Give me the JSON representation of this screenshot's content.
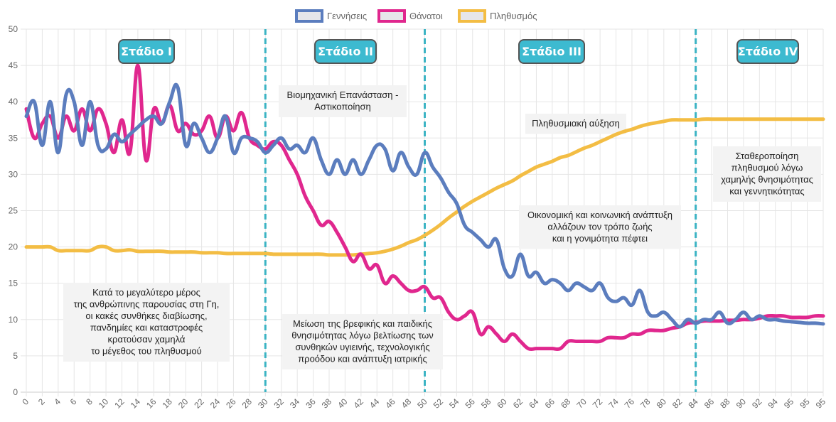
{
  "chart_data": {
    "type": "line",
    "title": "",
    "xlabel": "",
    "ylabel": "",
    "ylim": [
      0,
      50
    ],
    "y_ticks": [
      0,
      5,
      10,
      15,
      20,
      25,
      30,
      35,
      40,
      45,
      50
    ],
    "grid": true,
    "legend_position": "top",
    "x": [
      "0",
      "1",
      "2",
      "3",
      "4",
      "5",
      "6",
      "7",
      "8",
      "9",
      "10",
      "11",
      "12",
      "13",
      "14",
      "15",
      "16",
      "17",
      "18",
      "19",
      "20",
      "21",
      "22",
      "23",
      "24",
      "25",
      "26",
      "27",
      "28",
      "29",
      "30",
      "31",
      "32",
      "33",
      "34",
      "35",
      "36",
      "37",
      "38",
      "39",
      "40",
      "41",
      "42",
      "43",
      "44",
      "45",
      "46",
      "47",
      "48",
      "49",
      "50",
      "51",
      "52",
      "53",
      "54",
      "55",
      "56",
      "57",
      "58",
      "59",
      "60",
      "61",
      "62",
      "63",
      "64",
      "65",
      "66",
      "67",
      "68",
      "69",
      "70",
      "71",
      "72",
      "73",
      "74",
      "75",
      "76",
      "77",
      "78",
      "79",
      "80",
      "81",
      "82",
      "83",
      "84",
      "85",
      "86",
      "87",
      "88",
      "89",
      "90",
      "91",
      "92",
      "93",
      "94",
      "95",
      "95",
      "95",
      "95",
      "95",
      "95"
    ],
    "x_tick_labels": [
      "0",
      "2",
      "4",
      "6",
      "8",
      "10",
      "12",
      "14",
      "16",
      "18",
      "20",
      "22",
      "24",
      "26",
      "28",
      "30",
      "32",
      "34",
      "36",
      "38",
      "40",
      "42",
      "44",
      "46",
      "48",
      "50",
      "52",
      "54",
      "56",
      "58",
      "60",
      "62",
      "64",
      "66",
      "68",
      "70",
      "72",
      "74",
      "76",
      "78",
      "80",
      "82",
      "84",
      "86",
      "88",
      "90",
      "92",
      "94",
      "95",
      "95",
      "95"
    ],
    "series": [
      {
        "name": "Γεννήσεις",
        "color": "#5b7dbe",
        "values": [
          38,
          40,
          34,
          40,
          33,
          41,
          40,
          34,
          40,
          34,
          33.5,
          35.5,
          34.5,
          35.5,
          36.5,
          37.5,
          38,
          37,
          40,
          42,
          34,
          37,
          35,
          33,
          35,
          38,
          33,
          35,
          35,
          34.5,
          33,
          34,
          35,
          33.5,
          34,
          33,
          35,
          32,
          30,
          32,
          30,
          32,
          30,
          32,
          34,
          33.5,
          30.5,
          33,
          31,
          30,
          33,
          31,
          29.5,
          27.5,
          26,
          23,
          22,
          21,
          20,
          21,
          17,
          16,
          19,
          16,
          16.5,
          15,
          15.5,
          15,
          14,
          15,
          14.5,
          14,
          15,
          13,
          12.5,
          13,
          12,
          14,
          11,
          10.5,
          11,
          10,
          9,
          10,
          9.5,
          10,
          10,
          11,
          9.5,
          10,
          11,
          10,
          10.5,
          10,
          10,
          9.8,
          9.7,
          9.6,
          9.5,
          9.5,
          9.4
        ]
      },
      {
        "name": "Θάνατοι",
        "color": "#e0278e",
        "values": [
          39,
          35,
          37,
          38,
          35,
          38,
          36,
          39,
          36,
          39,
          37,
          33,
          37.5,
          33,
          45,
          32,
          39,
          37,
          39.5,
          36,
          37,
          35.5,
          36,
          38,
          35,
          38,
          36,
          38.5,
          35,
          34,
          33.5,
          34.5,
          34,
          32,
          30,
          27,
          25,
          23,
          23.5,
          22,
          20,
          18,
          19,
          17,
          17.5,
          15,
          16,
          15,
          14,
          14,
          14.5,
          13,
          13,
          11,
          10,
          10.5,
          11,
          8,
          9,
          8,
          7,
          8,
          7,
          6,
          6,
          6,
          6,
          6,
          7,
          7,
          7,
          7,
          7,
          7.5,
          7.5,
          7.5,
          8,
          8,
          8.5,
          8.5,
          8.5,
          8.8,
          9,
          9.5,
          9.6,
          9.8,
          9.8,
          9.8,
          9.9,
          9.9,
          10,
          10,
          10.2,
          10.5,
          10.5,
          10.5,
          10.3,
          10.3,
          10.3,
          10.5,
          10.5
        ]
      },
      {
        "name": "Πληθυσμός",
        "color": "#f3bd44",
        "values": [
          20,
          20,
          20,
          20,
          19.5,
          19.5,
          19.5,
          19.5,
          19.5,
          20,
          20,
          19.5,
          19.5,
          19.6,
          19.4,
          19.4,
          19.4,
          19.4,
          19.3,
          19.3,
          19.3,
          19.3,
          19.2,
          19.2,
          19.2,
          19.1,
          19.1,
          19.1,
          19.1,
          19.1,
          19.1,
          19,
          19,
          19,
          19,
          19,
          19,
          19,
          18.9,
          18.9,
          18.9,
          18.9,
          19,
          19.1,
          19.2,
          19.4,
          19.7,
          20.1,
          20.6,
          21,
          21.6,
          22.3,
          23.1,
          24,
          24.8,
          25.6,
          26.3,
          26.9,
          27.5,
          28.1,
          28.6,
          29.1,
          29.8,
          30.4,
          31,
          31.4,
          31.8,
          32.3,
          32.6,
          33.1,
          33.6,
          34,
          34.5,
          35,
          35.5,
          35.9,
          36.2,
          36.6,
          36.9,
          37.1,
          37.3,
          37.5,
          37.5,
          37.5,
          37.5,
          37.6,
          37.6,
          37.6,
          37.6,
          37.6,
          37.6,
          37.6,
          37.6,
          37.6,
          37.6,
          37.6,
          37.6,
          37.6,
          37.6,
          37.6,
          37.6
        ]
      }
    ],
    "stage_dividers": [
      "30",
      "50",
      "84"
    ],
    "stages": [
      {
        "label": "Στάδιο I"
      },
      {
        "label": "Στάδιο II"
      },
      {
        "label": "Στάδιο III"
      },
      {
        "label": "Στάδιο IV"
      }
    ],
    "annotations": [
      {
        "lines": [
          "Κατά το μεγαλύτερο μέρος",
          "της ανθρώπινης παρουσίας στη Γη,",
          "οι κακές συνθήκες διαβίωσης,",
          "πανδημίες και καταστροφές",
          "κρατούσαν χαμηλά",
          "το μέγεθος του πληθυσμού"
        ]
      },
      {
        "lines": [
          "Βιομηχανική Επανάσταση -",
          "Αστικοποίηση"
        ]
      },
      {
        "lines": [
          "Μείωση της βρεφικής και παιδικής",
          "θνησιμότητας λόγω βελτίωσης των",
          "συνθηκών υγιεινής, τεχνολογικής",
          "προόδου και ανάπτυξη ιατρικής"
        ]
      },
      {
        "lines": [
          "Πληθυσμιακή αύξηση"
        ]
      },
      {
        "lines": [
          "Οικονομική και κοινωνική ανάπτυξη",
          "αλλάζουν τον τρόπο ζωής",
          "και η γονιμότητα πέφτει"
        ]
      },
      {
        "lines": [
          "Σταθεροποίηση",
          "πληθυσμού λόγω",
          "χαμηλής θνησιμότητας",
          "και γεννητικότητας"
        ]
      }
    ],
    "colors": {
      "stage_fill": "#3dbad0",
      "stage_border": "#555555",
      "divider": "#3cb4c4",
      "grid": "#e5e5e5",
      "note_bg": "#f3f3f3"
    }
  }
}
